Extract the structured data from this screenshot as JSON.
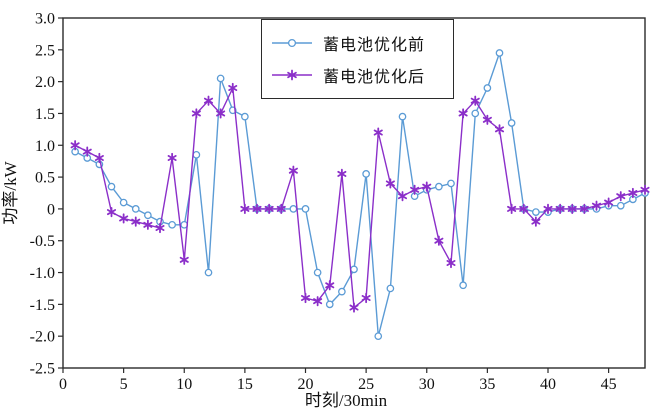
{
  "figure": {
    "background": "#ffffff",
    "x_axis_title": "时刻/30min",
    "y_axis_title": "功率/kW",
    "x_tick_labels": [
      "0",
      "5",
      "10",
      "15",
      "20",
      "25",
      "30",
      "35",
      "40",
      "45"
    ],
    "x_tick_values": [
      0,
      5,
      10,
      15,
      20,
      25,
      30,
      35,
      40,
      45
    ],
    "y_tick_labels": [
      "3.0",
      "2.5",
      "2.0",
      "1.5",
      "1.0",
      "0.5",
      "0",
      "-0.5",
      "-1.0",
      "-1.5",
      "-2.0",
      "-2.5"
    ],
    "y_tick_values": [
      3.0,
      2.5,
      2.0,
      1.5,
      1.0,
      0.5,
      0,
      -0.5,
      -1.0,
      -1.5,
      -2.0,
      -2.5
    ],
    "colors": {
      "before_series": "#5b9bd5",
      "after_series": "#8b2fc9",
      "axis": "#2b2b2b",
      "text": "#111111"
    }
  },
  "legend": {
    "items": [
      {
        "label": "蓄电池优化前",
        "color": "#5b9bd5",
        "marker": "circle"
      },
      {
        "label": "蓄电池优化后",
        "color": "#8b2fc9",
        "marker": "asterisk"
      }
    ]
  },
  "chart_data": {
    "type": "line",
    "title": "",
    "xlabel": "时刻/30min",
    "ylabel": "功率/kW",
    "xlim": [
      0,
      48
    ],
    "ylim": [
      -2.5,
      3.0
    ],
    "grid": false,
    "legend_position": "top-center",
    "x": [
      1,
      2,
      3,
      4,
      5,
      6,
      7,
      8,
      9,
      10,
      11,
      12,
      13,
      14,
      15,
      16,
      17,
      18,
      19,
      20,
      21,
      22,
      23,
      24,
      25,
      26,
      27,
      28,
      29,
      30,
      31,
      32,
      33,
      34,
      35,
      36,
      37,
      38,
      39,
      40,
      41,
      42,
      43,
      44,
      45,
      46,
      47,
      48
    ],
    "series": [
      {
        "name": "蓄电池优化前",
        "color": "#5b9bd5",
        "marker": "circle",
        "values": [
          0.9,
          0.8,
          0.7,
          0.35,
          0.1,
          0.0,
          -0.1,
          -0.2,
          -0.25,
          -0.25,
          0.85,
          -1.0,
          2.05,
          1.55,
          1.45,
          0.0,
          0.0,
          0.0,
          0.0,
          0.0,
          -1.0,
          -1.5,
          -1.3,
          -0.95,
          0.55,
          -2.0,
          -1.25,
          1.45,
          0.2,
          0.3,
          0.35,
          0.4,
          -1.2,
          1.5,
          1.9,
          2.45,
          1.35,
          0.0,
          -0.05,
          -0.05,
          0.0,
          0.0,
          0.0,
          0.0,
          0.05,
          0.05,
          0.15,
          0.25
        ]
      },
      {
        "name": "蓄电池优化后",
        "color": "#8b2fc9",
        "marker": "asterisk",
        "values": [
          1.0,
          0.9,
          0.8,
          -0.05,
          -0.15,
          -0.2,
          -0.25,
          -0.3,
          0.8,
          -0.8,
          1.5,
          1.7,
          1.5,
          1.9,
          0.0,
          0.0,
          0.0,
          0.0,
          0.6,
          -1.4,
          -1.45,
          -1.2,
          0.55,
          -1.55,
          -1.4,
          1.2,
          0.4,
          0.2,
          0.3,
          0.35,
          -0.5,
          -0.85,
          1.5,
          1.7,
          1.4,
          1.25,
          0.0,
          0.0,
          -0.2,
          0.0,
          0.0,
          0.0,
          0.0,
          0.05,
          0.1,
          0.2,
          0.25,
          0.3
        ]
      }
    ]
  }
}
